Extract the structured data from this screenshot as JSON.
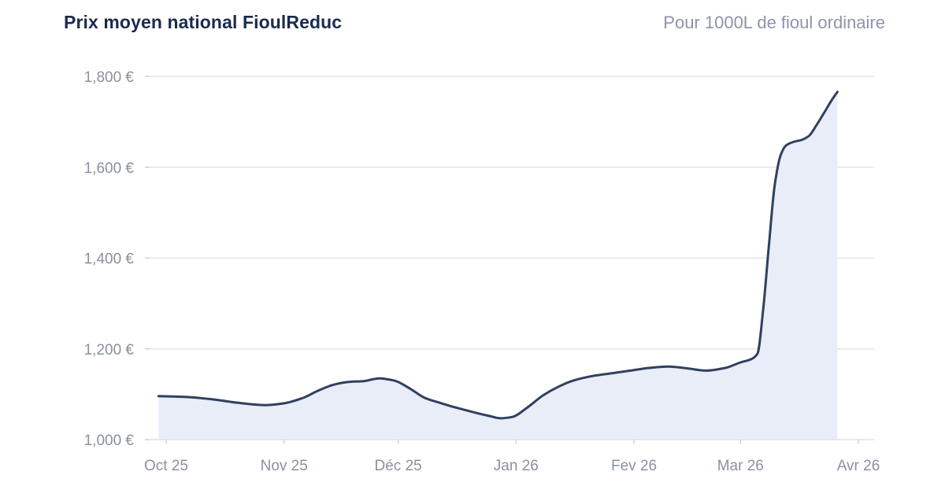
{
  "header": {
    "title": "Prix moyen national FioulReduc",
    "subtitle": "Pour 1000L de fioul ordinaire"
  },
  "colors": {
    "title": "#1b2b4f",
    "subtitle": "#8d95a8",
    "axis_label": "#8b90a1",
    "gridline": "#e4e5e9",
    "baseline": "#dfe1e6",
    "tick_mark": "#ccd0d9",
    "line": "#30405f",
    "area_fill": "#e9edf8",
    "background": "#ffffff"
  },
  "chart_data": {
    "type": "area",
    "title": "Prix moyen national FioulReduc",
    "subtitle": "Pour 1000L de fioul ordinaire",
    "unit": "euros per 1000L of fioul ordinaire",
    "grid": "horizontal",
    "legend": "none",
    "x_axis": {
      "tick_labels": [
        "Oct 25",
        "Nov 25",
        "Déc 25",
        "Jan 26",
        "Fev 26",
        "Mar 26",
        "Avr 26"
      ],
      "tick_days": [
        0,
        31,
        61,
        92,
        123,
        151,
        182
      ],
      "range_days": [
        0,
        182
      ]
    },
    "y_axis": {
      "tick_labels": [
        "1,000 €",
        "1,200 €",
        "1,400 €",
        "1,600 €",
        "1,800 €"
      ],
      "tick_values": [
        1000,
        1200,
        1400,
        1600,
        1800
      ],
      "range": [
        1000,
        1800
      ]
    },
    "series": [
      {
        "name": "Prix moyen national (€ / 1000L)",
        "points": [
          [
            -2,
            1096
          ],
          [
            5,
            1094
          ],
          [
            12,
            1089
          ],
          [
            19,
            1081
          ],
          [
            26,
            1076
          ],
          [
            31,
            1080
          ],
          [
            36,
            1092
          ],
          [
            40,
            1108
          ],
          [
            44,
            1121
          ],
          [
            48,
            1127
          ],
          [
            52,
            1129
          ],
          [
            56,
            1135
          ],
          [
            60,
            1130
          ],
          [
            64,
            1113
          ],
          [
            68,
            1092
          ],
          [
            72,
            1081
          ],
          [
            76,
            1071
          ],
          [
            81,
            1060
          ],
          [
            85,
            1052
          ],
          [
            88,
            1047
          ],
          [
            91,
            1050
          ],
          [
            95,
            1071
          ],
          [
            99,
            1097
          ],
          [
            103,
            1116
          ],
          [
            107,
            1130
          ],
          [
            112,
            1140
          ],
          [
            117,
            1146
          ],
          [
            122,
            1152
          ],
          [
            127,
            1158
          ],
          [
            132,
            1161
          ],
          [
            137,
            1157
          ],
          [
            142,
            1152
          ],
          [
            147,
            1158
          ],
          [
            151,
            1170
          ],
          [
            154,
            1178
          ],
          [
            155.5,
            1190
          ],
          [
            157,
            1290
          ],
          [
            158.5,
            1430
          ],
          [
            160,
            1560
          ],
          [
            161.5,
            1625
          ],
          [
            163,
            1648
          ],
          [
            165,
            1656
          ],
          [
            167,
            1660
          ],
          [
            169,
            1669
          ],
          [
            171,
            1693
          ],
          [
            173,
            1720
          ],
          [
            175,
            1748
          ],
          [
            176.5,
            1766
          ]
        ]
      }
    ]
  }
}
